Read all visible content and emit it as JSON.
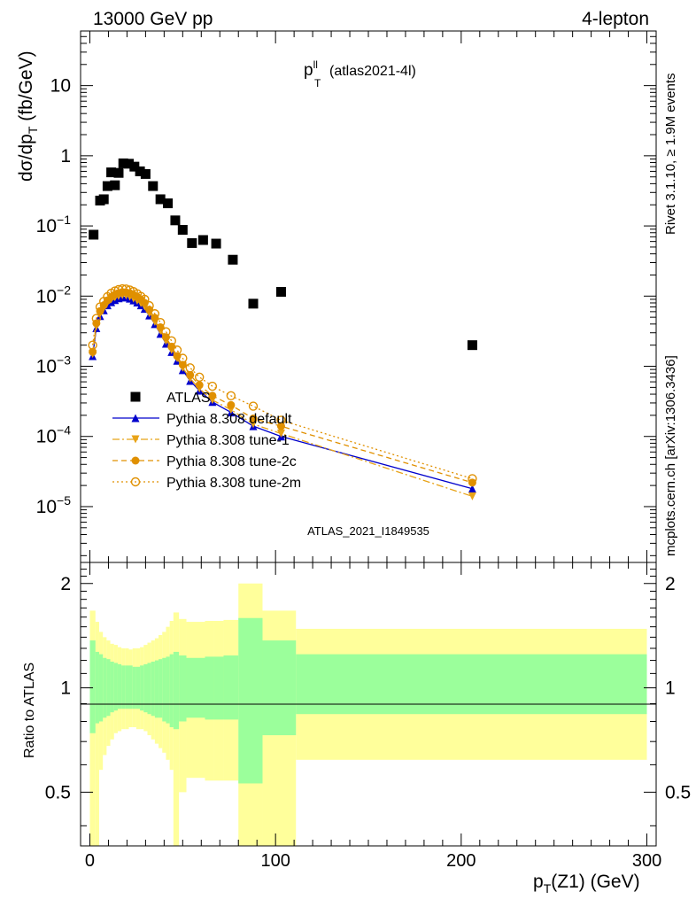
{
  "header": {
    "left": "13000 GeV pp",
    "right": "4-lepton"
  },
  "plot_title": {
    "main": "p",
    "superscript": "ll",
    "subscript": "T",
    "tag": "(atlas2021-4l)"
  },
  "watermark": "ATLAS_2021_I1849535",
  "side_labels": {
    "rivet": "Rivet 3.1.10, ≥ 1.9M events",
    "mcplots": "mcplots.cern.ch [arXiv:1306.3436]"
  },
  "axes": {
    "main_ylabel": {
      "base": "dσ/dp",
      "sub": "T",
      "unit": " (fb/GeV)"
    },
    "ratio_ylabel": "Ratio to ATLAS",
    "xlabel": {
      "base": "p",
      "sub": "T",
      "rest": "(Z1) (GeV)"
    },
    "x_ticks": [
      "0",
      "100",
      "200",
      "300"
    ],
    "main_y_ticks": [
      {
        "base": "10",
        "exp": "−5",
        "value": 1e-05
      },
      {
        "base": "10",
        "exp": "−4",
        "value": 0.0001
      },
      {
        "base": "10",
        "exp": "−3",
        "value": 0.001
      },
      {
        "base": "10",
        "exp": "−2",
        "value": 0.01
      },
      {
        "base": "10",
        "exp": "−1",
        "value": 0.1
      },
      {
        "base": "1",
        "exp": "",
        "value": 1
      },
      {
        "base": "10",
        "exp": "",
        "value": 10
      }
    ],
    "ratio_y_ticks": [
      {
        "label": "0.5",
        "value": 0.5
      },
      {
        "label": "1",
        "value": 1
      },
      {
        "label": "2",
        "value": 2
      }
    ]
  },
  "legend": [
    {
      "label": "ATLAS",
      "color": "#000000",
      "marker": "square",
      "line": "none"
    },
    {
      "label": "Pythia 8.308 default",
      "color": "#0000cc",
      "marker": "triangle-up",
      "line": "solid"
    },
    {
      "label": "Pythia 8.308 tune-1",
      "color": "#e8a317",
      "marker": "triangle-down",
      "line": "dashdot"
    },
    {
      "label": "Pythia 8.308 tune-2c",
      "color": "#e09000",
      "marker": "circle",
      "line": "dashed"
    },
    {
      "label": "Pythia 8.308 tune-2m",
      "color": "#e09000",
      "marker": "open-circle",
      "line": "dotted"
    }
  ],
  "chart_data": {
    "type": "scatter",
    "x_range": [
      -5,
      305
    ],
    "main_y_range": [
      1.6e-06,
      60
    ],
    "main_y_scale": "log",
    "ratio_y_range": [
      0.35,
      2.3
    ],
    "ratio_y_scale": "log",
    "atlas": {
      "x": [
        2,
        5.5,
        7.5,
        9.5,
        11.5,
        13.5,
        15.5,
        18,
        21,
        24,
        27,
        30,
        34,
        38,
        42,
        46,
        50,
        55,
        61,
        68,
        77,
        88,
        103,
        206
      ],
      "y": [
        0.075,
        0.23,
        0.24,
        0.37,
        0.58,
        0.38,
        0.57,
        0.78,
        0.77,
        0.7,
        0.6,
        0.55,
        0.37,
        0.24,
        0.21,
        0.12,
        0.088,
        0.057,
        0.063,
        0.056,
        0.033,
        0.0078,
        0.0115,
        0.002
      ]
    },
    "mc_x": [
      1.5,
      3.5,
      5.5,
      7.5,
      9.5,
      11.5,
      13.5,
      15.5,
      17.5,
      19.5,
      21.5,
      23.5,
      25.5,
      27.5,
      29.5,
      32,
      35,
      38,
      41,
      44,
      47,
      50,
      54,
      59,
      66,
      76,
      88,
      103,
      206
    ],
    "series": [
      {
        "name": "Pythia 8.308 default",
        "y": [
          0.0014,
          0.0035,
          0.0052,
          0.0063,
          0.0074,
          0.0082,
          0.0088,
          0.0093,
          0.0096,
          0.0096,
          0.0092,
          0.0087,
          0.0081,
          0.0074,
          0.0066,
          0.0053,
          0.004,
          0.0029,
          0.0021,
          0.0016,
          0.0012,
          0.00088,
          0.00062,
          0.00045,
          0.00031,
          0.00022,
          0.00014,
          0.0001,
          1.8e-05
        ]
      },
      {
        "name": "Pythia 8.308 tune-1",
        "y": [
          0.0015,
          0.0037,
          0.0056,
          0.0068,
          0.0081,
          0.009,
          0.0096,
          0.01,
          0.0103,
          0.0102,
          0.0098,
          0.0092,
          0.0086,
          0.0079,
          0.0071,
          0.0057,
          0.0043,
          0.0032,
          0.0023,
          0.0017,
          0.0013,
          0.00095,
          0.00067,
          0.00048,
          0.00033,
          0.00024,
          0.00015,
          0.00011,
          1.4e-05
        ]
      },
      {
        "name": "Pythia 8.308 tune-2c",
        "y": [
          0.0016,
          0.0041,
          0.0061,
          0.0074,
          0.0087,
          0.0097,
          0.0105,
          0.011,
          0.0114,
          0.0113,
          0.011,
          0.0104,
          0.0097,
          0.0089,
          0.008,
          0.0064,
          0.0049,
          0.0036,
          0.0026,
          0.0019,
          0.0014,
          0.00105,
          0.00075,
          0.00054,
          0.00038,
          0.00028,
          0.00018,
          0.00014,
          2.2e-05
        ]
      },
      {
        "name": "Pythia 8.308 tune-2m",
        "y": [
          0.002,
          0.0048,
          0.007,
          0.0084,
          0.0098,
          0.011,
          0.0118,
          0.0124,
          0.0127,
          0.0126,
          0.0122,
          0.0116,
          0.0108,
          0.0099,
          0.009,
          0.0073,
          0.0056,
          0.0042,
          0.0031,
          0.0023,
          0.0017,
          0.0013,
          0.00095,
          0.0007,
          0.00052,
          0.00038,
          0.00027,
          0.00017,
          2.5e-05
        ]
      }
    ],
    "ratio_band": {
      "edges": [
        0,
        3,
        5,
        7,
        9,
        11,
        13,
        15,
        17,
        19,
        21,
        23,
        25,
        27,
        29,
        31,
        33,
        35,
        37,
        39,
        41,
        43,
        45,
        48,
        52,
        57,
        62,
        67,
        72,
        80,
        93,
        111,
        300
      ],
      "inner_lo": [
        0.74,
        0.79,
        0.8,
        0.82,
        0.83,
        0.85,
        0.86,
        0.87,
        0.87,
        0.87,
        0.87,
        0.87,
        0.87,
        0.86,
        0.85,
        0.84,
        0.83,
        0.82,
        0.82,
        0.8,
        0.79,
        0.77,
        0.76,
        0.8,
        0.82,
        0.82,
        0.81,
        0.81,
        0.81,
        0.53,
        0.73,
        0.84
      ],
      "inner_hi": [
        1.37,
        1.27,
        1.25,
        1.22,
        1.21,
        1.19,
        1.18,
        1.17,
        1.16,
        1.16,
        1.16,
        1.15,
        1.15,
        1.16,
        1.17,
        1.18,
        1.19,
        1.2,
        1.21,
        1.22,
        1.23,
        1.25,
        1.27,
        1.24,
        1.22,
        1.22,
        1.23,
        1.23,
        1.24,
        1.59,
        1.37,
        1.25
      ],
      "outer_lo": [
        0.35,
        0.35,
        0.58,
        0.64,
        0.68,
        0.71,
        0.74,
        0.75,
        0.76,
        0.76,
        0.77,
        0.77,
        0.76,
        0.76,
        0.75,
        0.73,
        0.71,
        0.69,
        0.67,
        0.65,
        0.62,
        0.58,
        0.35,
        0.5,
        0.55,
        0.55,
        0.54,
        0.54,
        0.54,
        0.35,
        0.35,
        0.62
      ],
      "outer_hi": [
        1.67,
        1.55,
        1.45,
        1.4,
        1.37,
        1.34,
        1.33,
        1.31,
        1.3,
        1.3,
        1.29,
        1.3,
        1.3,
        1.31,
        1.33,
        1.35,
        1.37,
        1.39,
        1.42,
        1.45,
        1.5,
        1.56,
        1.65,
        1.58,
        1.55,
        1.55,
        1.56,
        1.56,
        1.57,
        2.0,
        1.67,
        1.48
      ]
    }
  },
  "colors": {
    "band_inner": "#9bff9b",
    "band_outer": "#ffff9b",
    "watermark": "#8c8c8c"
  }
}
